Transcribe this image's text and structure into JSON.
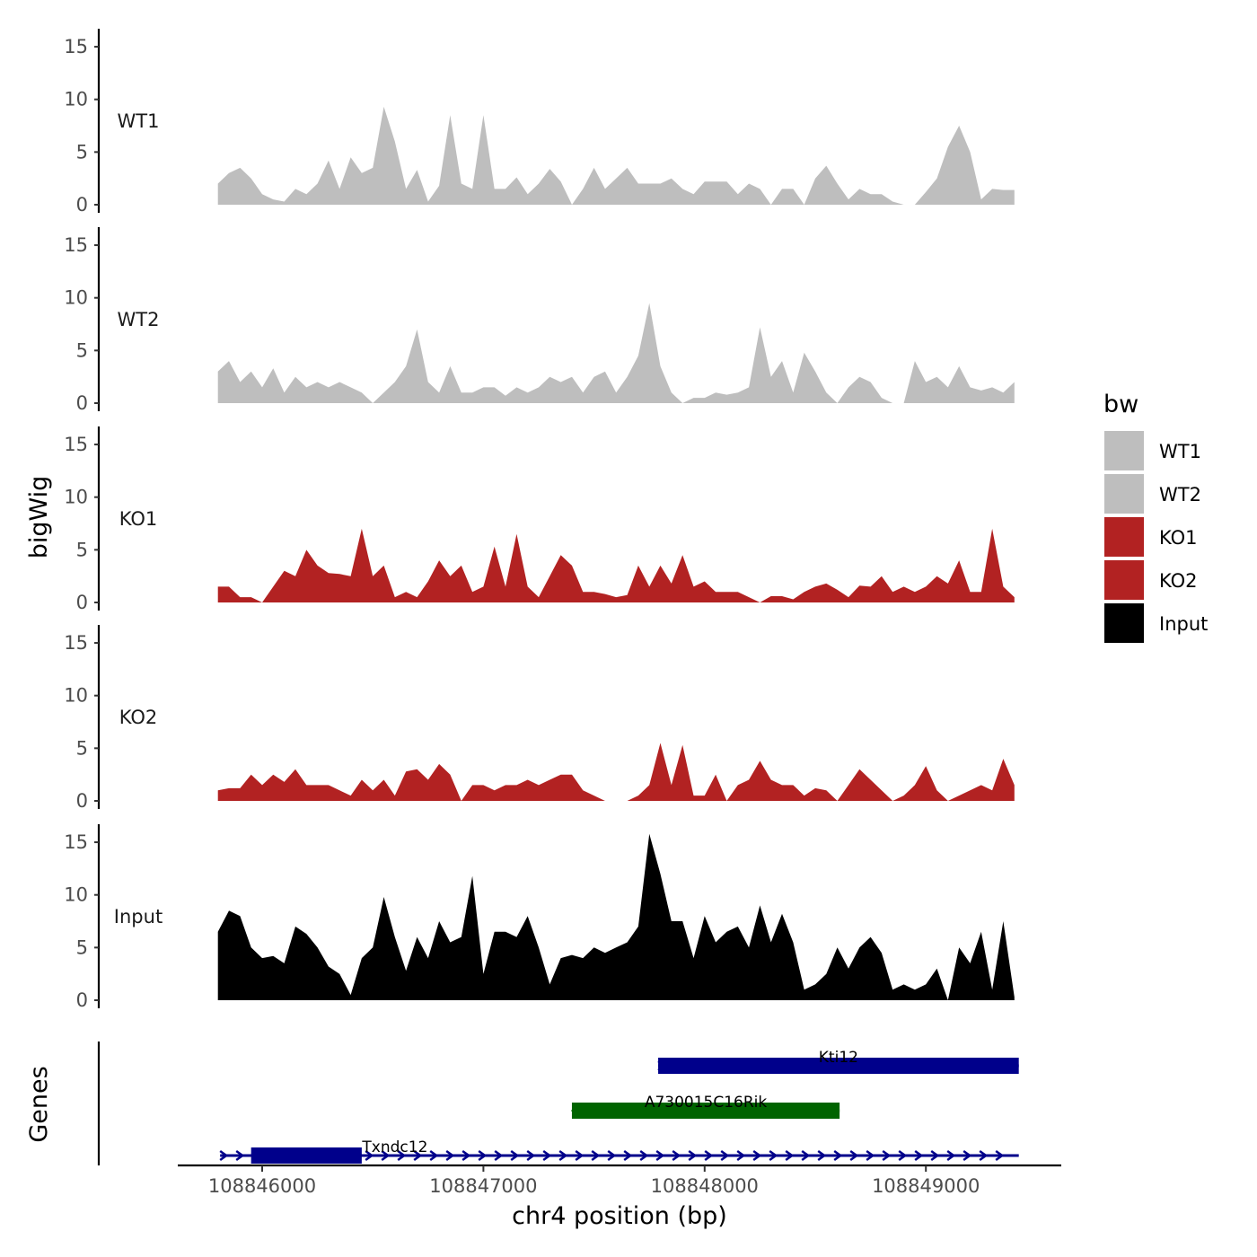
{
  "chart_data": {
    "type": "area",
    "title": "",
    "xlabel": "chr4 position (bp)",
    "ylabel": "bigWig",
    "genes_label": "Genes",
    "xlim": [
      108845600,
      108849600
    ],
    "ylim": [
      0,
      16
    ],
    "x_ticks": [
      108846000,
      108847000,
      108848000,
      108849000
    ],
    "x_tick_labels": [
      "108846000",
      "108847000",
      "108848000",
      "108849000"
    ],
    "y_ticks": [
      0,
      5,
      10,
      15
    ],
    "y_tick_labels": [
      "0",
      "5",
      "10",
      "15"
    ],
    "legend": {
      "title": "bw",
      "placement": "right",
      "items": [
        {
          "label": "WT1",
          "color": "#bebebe"
        },
        {
          "label": "WT2",
          "color": "#bebebe"
        },
        {
          "label": "KO1",
          "color": "#b22222"
        },
        {
          "label": "KO2",
          "color": "#b22222"
        },
        {
          "label": "Input",
          "color": "#000000"
        }
      ]
    },
    "series": [
      {
        "name": "WT1",
        "color": "#bebebe",
        "x": [
          108845800,
          108845850,
          108845900,
          108845950,
          108846000,
          108846050,
          108846100,
          108846150,
          108846200,
          108846250,
          108846300,
          108846350,
          108846400,
          108846450,
          108846500,
          108846550,
          108846600,
          108846650,
          108846700,
          108846750,
          108846800,
          108846850,
          108846900,
          108846950,
          108847000,
          108847050,
          108847100,
          108847150,
          108847200,
          108847250,
          108847300,
          108847350,
          108847400,
          108847450,
          108847500,
          108847550,
          108847600,
          108847650,
          108847700,
          108847750,
          108847800,
          108847850,
          108847900,
          108847950,
          108848000,
          108848050,
          108848100,
          108848150,
          108848200,
          108848250,
          108848300,
          108848350,
          108848400,
          108848450,
          108848500,
          108848550,
          108848600,
          108848650,
          108848700,
          108848750,
          108848800,
          108848850,
          108848900,
          108848950,
          108849000,
          108849050,
          108849100,
          108849150,
          108849200,
          108849250,
          108849300,
          108849350,
          108849400
        ],
        "y": [
          2,
          3,
          3.5,
          2.5,
          1,
          0.5,
          0.3,
          1.5,
          1,
          2,
          4.2,
          1.5,
          4.5,
          3,
          3.5,
          9.3,
          6,
          1.5,
          3.3,
          0.3,
          1.8,
          8.5,
          2,
          1.5,
          8.5,
          1.5,
          1.5,
          2.6,
          1,
          2,
          3.4,
          2.2,
          0,
          1.5,
          3.5,
          1.5,
          2.5,
          3.5,
          2,
          2,
          2,
          2.5,
          1.5,
          1,
          2.2,
          2.2,
          2.2,
          1,
          2,
          1.5,
          0,
          1.5,
          1.5,
          0,
          2.5,
          3.7,
          2,
          0.5,
          1.5,
          1,
          1,
          0.3,
          0,
          0,
          1.2,
          2.5,
          5.5,
          7.5,
          5,
          0.5,
          1.5,
          1.4,
          1.4
        ]
      },
      {
        "name": "WT2",
        "color": "#bebebe",
        "x": [
          108845800,
          108845850,
          108845900,
          108845950,
          108846000,
          108846050,
          108846100,
          108846150,
          108846200,
          108846250,
          108846300,
          108846350,
          108846400,
          108846450,
          108846500,
          108846550,
          108846600,
          108846650,
          108846700,
          108846750,
          108846800,
          108846850,
          108846900,
          108846950,
          108847000,
          108847050,
          108847100,
          108847150,
          108847200,
          108847250,
          108847300,
          108847350,
          108847400,
          108847450,
          108847500,
          108847550,
          108847600,
          108847650,
          108847700,
          108847750,
          108847800,
          108847850,
          108847900,
          108847950,
          108848000,
          108848050,
          108848100,
          108848150,
          108848200,
          108848250,
          108848300,
          108848350,
          108848400,
          108848450,
          108848500,
          108848550,
          108848600,
          108848650,
          108848700,
          108848750,
          108848800,
          108848850,
          108848900,
          108848950,
          108849000,
          108849050,
          108849100,
          108849150,
          108849200,
          108849250,
          108849300,
          108849350,
          108849400
        ],
        "y": [
          3,
          4,
          2,
          3,
          1.5,
          3.3,
          1,
          2.5,
          1.5,
          2,
          1.5,
          2,
          1.5,
          1,
          0,
          1,
          2,
          3.5,
          7,
          2,
          1,
          3.5,
          1,
          1,
          1.5,
          1.5,
          0.7,
          1.5,
          1,
          1.5,
          2.5,
          2,
          2.5,
          1,
          2.5,
          3,
          1,
          2.5,
          4.5,
          9.5,
          3.5,
          1,
          0,
          0.5,
          0.5,
          1,
          0.8,
          1,
          1.5,
          7.2,
          2.5,
          4,
          1,
          4.8,
          3,
          1,
          0,
          1.5,
          2.5,
          2,
          0.5,
          0,
          0,
          4,
          2,
          2.5,
          1.5,
          3.5,
          1.5,
          1.2,
          1.5,
          1,
          2
        ]
      },
      {
        "name": "KO1",
        "color": "#b22222",
        "x": [
          108845800,
          108845850,
          108845900,
          108845950,
          108846000,
          108846050,
          108846100,
          108846150,
          108846200,
          108846250,
          108846300,
          108846350,
          108846400,
          108846450,
          108846500,
          108846550,
          108846600,
          108846650,
          108846700,
          108846750,
          108846800,
          108846850,
          108846900,
          108846950,
          108847000,
          108847050,
          108847100,
          108847150,
          108847200,
          108847250,
          108847300,
          108847350,
          108847400,
          108847450,
          108847500,
          108847550,
          108847600,
          108847650,
          108847700,
          108847750,
          108847800,
          108847850,
          108847900,
          108847950,
          108848000,
          108848050,
          108848100,
          108848150,
          108848200,
          108848250,
          108848300,
          108848350,
          108848400,
          108848450,
          108848500,
          108848550,
          108848600,
          108848650,
          108848700,
          108848750,
          108848800,
          108848850,
          108848900,
          108848950,
          108849000,
          108849050,
          108849100,
          108849150,
          108849200,
          108849250,
          108849300,
          108849350,
          108849400
        ],
        "y": [
          1.5,
          1.5,
          0.5,
          0.5,
          0,
          1.5,
          3,
          2.5,
          5,
          3.5,
          2.8,
          2.7,
          2.5,
          7,
          2.5,
          3.5,
          0.5,
          1,
          0.5,
          2,
          4,
          2.5,
          3.5,
          1,
          1.5,
          5.3,
          1.5,
          6.5,
          1.5,
          0.5,
          2.5,
          4.5,
          3.5,
          1,
          1,
          0.8,
          0.5,
          0.7,
          3.5,
          1.5,
          3.5,
          1.8,
          4.5,
          1.5,
          2,
          1,
          1,
          1,
          0.5,
          0,
          0.6,
          0.6,
          0.3,
          1,
          1.5,
          1.8,
          1.2,
          0.5,
          1.6,
          1.5,
          2.5,
          1,
          1.5,
          1,
          1.5,
          2.5,
          1.8,
          4,
          1,
          1,
          7,
          1.5,
          0.5
        ]
      },
      {
        "name": "KO2",
        "color": "#b22222",
        "x": [
          108845800,
          108845850,
          108845900,
          108845950,
          108846000,
          108846050,
          108846100,
          108846150,
          108846200,
          108846250,
          108846300,
          108846350,
          108846400,
          108846450,
          108846500,
          108846550,
          108846600,
          108846650,
          108846700,
          108846750,
          108846800,
          108846850,
          108846900,
          108846950,
          108847000,
          108847050,
          108847100,
          108847150,
          108847200,
          108847250,
          108847300,
          108847350,
          108847400,
          108847450,
          108847500,
          108847550,
          108847600,
          108847650,
          108847700,
          108847750,
          108847800,
          108847850,
          108847900,
          108847950,
          108848000,
          108848050,
          108848100,
          108848150,
          108848200,
          108848250,
          108848300,
          108848350,
          108848400,
          108848450,
          108848500,
          108848550,
          108848600,
          108848650,
          108848700,
          108848750,
          108848800,
          108848850,
          108848900,
          108848950,
          108849000,
          108849050,
          108849100,
          108849150,
          108849200,
          108849250,
          108849300,
          108849350,
          108849400
        ],
        "y": [
          1,
          1.2,
          1.2,
          2.5,
          1.5,
          2.5,
          1.8,
          3,
          1.5,
          1.5,
          1.5,
          1,
          0.5,
          2,
          1,
          2,
          0.5,
          2.8,
          3,
          2,
          3.5,
          2.5,
          0,
          1.5,
          1.5,
          1,
          1.5,
          1.5,
          2,
          1.5,
          2,
          2.5,
          2.5,
          1,
          0.5,
          0,
          0,
          0,
          0.5,
          1.5,
          5.5,
          1.5,
          5.3,
          0.5,
          0.5,
          2.5,
          0,
          1.5,
          2,
          3.8,
          2,
          1.5,
          1.5,
          0.5,
          1.2,
          1,
          0,
          1.5,
          3,
          2,
          1,
          0,
          0.5,
          1.5,
          3.3,
          1,
          0,
          0.5,
          1,
          1.5,
          1,
          4,
          1.5
        ]
      },
      {
        "name": "Input",
        "color": "#000000",
        "x": [
          108845800,
          108845850,
          108845900,
          108845950,
          108846000,
          108846050,
          108846100,
          108846150,
          108846200,
          108846250,
          108846300,
          108846350,
          108846400,
          108846450,
          108846500,
          108846550,
          108846600,
          108846650,
          108846700,
          108846750,
          108846800,
          108846850,
          108846900,
          108846950,
          108847000,
          108847050,
          108847100,
          108847150,
          108847200,
          108847250,
          108847300,
          108847350,
          108847400,
          108847450,
          108847500,
          108847550,
          108847600,
          108847650,
          108847700,
          108847750,
          108847800,
          108847850,
          108847900,
          108847950,
          108848000,
          108848050,
          108848100,
          108848150,
          108848200,
          108848250,
          108848300,
          108848350,
          108848400,
          108848450,
          108848500,
          108848550,
          108848600,
          108848650,
          108848700,
          108848750,
          108848800,
          108848850,
          108848900,
          108848950,
          108849000,
          108849050,
          108849100,
          108849150,
          108849200,
          108849250,
          108849300,
          108849350,
          108849400
        ],
        "y": [
          6.5,
          8.5,
          8,
          5,
          4,
          4.2,
          3.5,
          7,
          6.3,
          5,
          3.2,
          2.5,
          0.5,
          4,
          5,
          9.8,
          6,
          2.8,
          6,
          4,
          7.5,
          5.5,
          6,
          11.8,
          2.5,
          6.5,
          6.5,
          6,
          8,
          5,
          1.5,
          4,
          4.3,
          4,
          5,
          4.5,
          5,
          5.5,
          7,
          15.8,
          12,
          7.5,
          7.5,
          4,
          8,
          5.5,
          6.5,
          7,
          5,
          9,
          5.5,
          8.2,
          5.5,
          1,
          1.5,
          2.5,
          5,
          3,
          5,
          6,
          4.5,
          1,
          1.5,
          1,
          1.5,
          3,
          0,
          5,
          3.5,
          6.5,
          1,
          7.5,
          0.3
        ]
      }
    ],
    "genes": [
      {
        "name": "Kti12",
        "start": 108847790,
        "end": 108849420,
        "strand": "+",
        "color": "#00008b",
        "thick_start": 108847790,
        "thick_end": 108849420
      },
      {
        "name": "A730015C16Rik",
        "start": 108847400,
        "end": 108848610,
        "strand": "-",
        "color": "#006400",
        "thick_start": 108847400,
        "thick_end": 108848610
      },
      {
        "name": "Txndc12",
        "start": 108845810,
        "end": 108849420,
        "strand": "+",
        "color": "#00008b",
        "thick_start": 108845950,
        "thick_end": 108846450
      }
    ]
  }
}
